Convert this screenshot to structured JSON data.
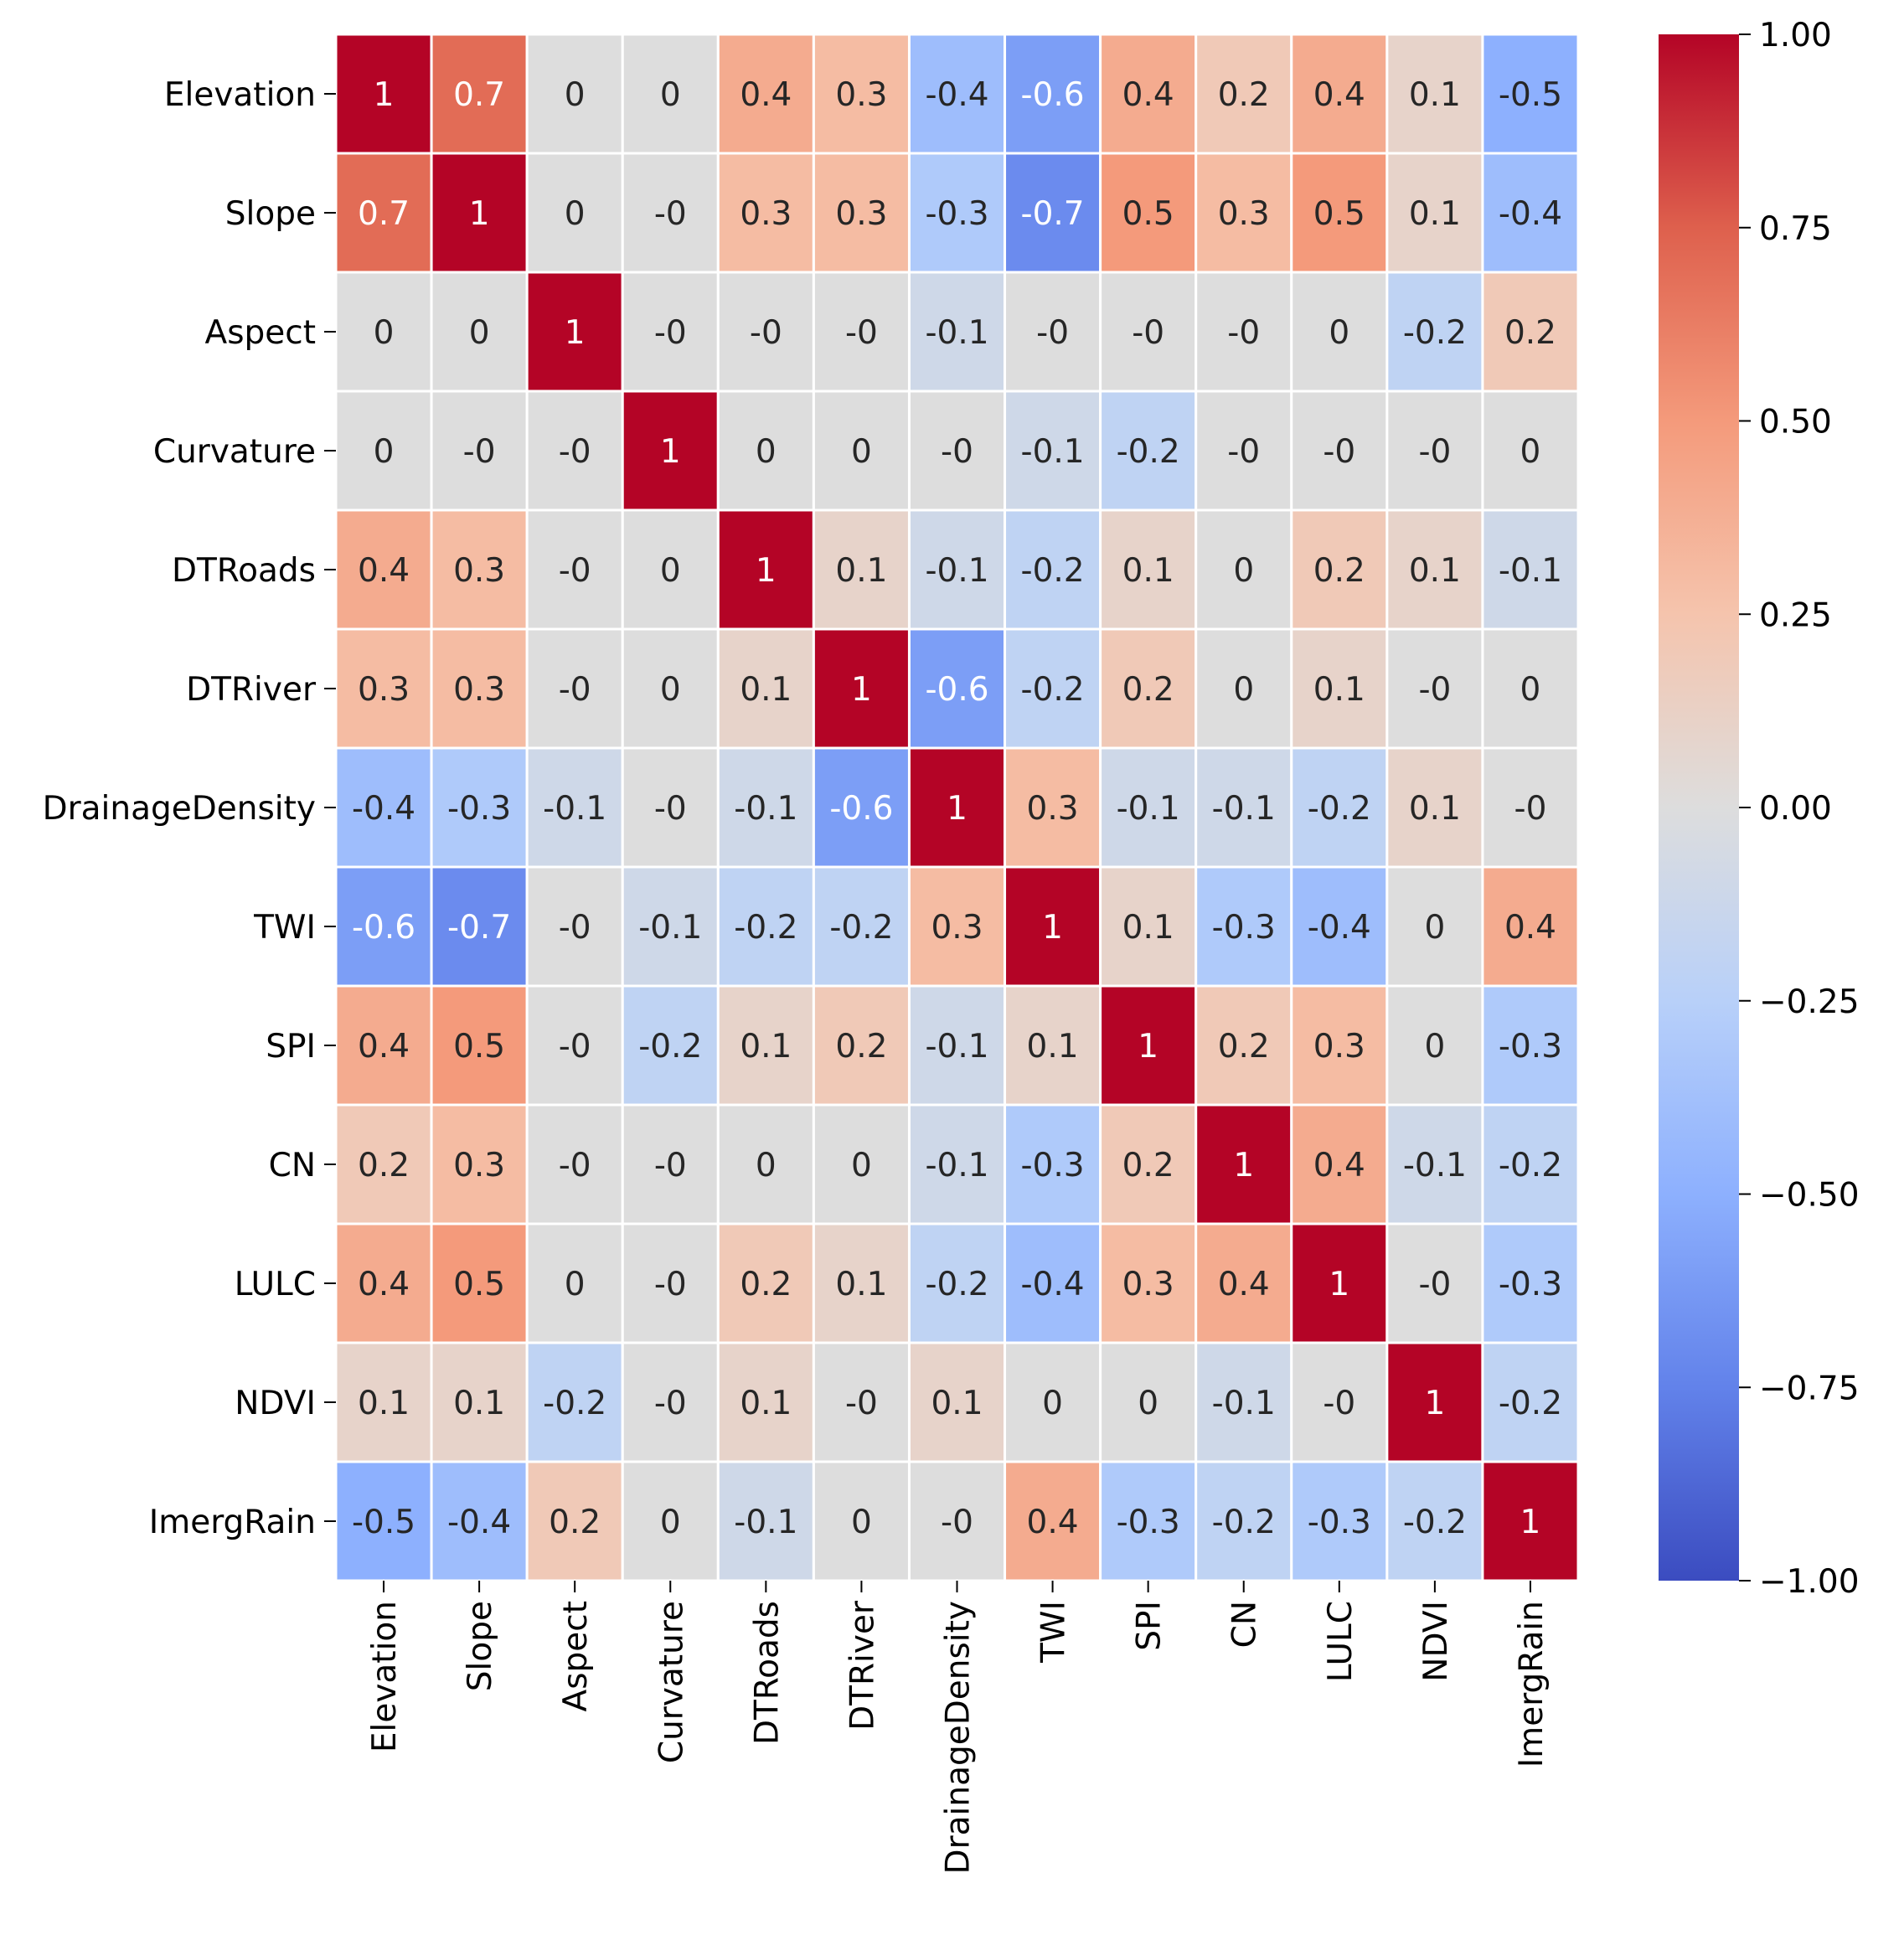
{
  "chart_data": {
    "type": "heatmap",
    "title": "",
    "colormap": "coolwarm",
    "vmin": -1,
    "vmax": 1,
    "labels": [
      "Elevation",
      "Slope",
      "Aspect",
      "Curvature",
      "DTRoads",
      "DTRiver",
      "DrainageDensity",
      "TWI",
      "SPI",
      "CN",
      "LULC",
      "NDVI",
      "ImergRain"
    ],
    "matrix": [
      [
        "1",
        "0.7",
        "0",
        "0",
        "0.4",
        "0.3",
        "-0.4",
        "-0.6",
        "0.4",
        "0.2",
        "0.4",
        "0.1",
        "-0.5"
      ],
      [
        "0.7",
        "1",
        "0",
        "-0",
        "0.3",
        "0.3",
        "-0.3",
        "-0.7",
        "0.5",
        "0.3",
        "0.5",
        "0.1",
        "-0.4"
      ],
      [
        "0",
        "0",
        "1",
        "-0",
        "-0",
        "-0",
        "-0.1",
        "-0",
        "-0",
        "-0",
        "0",
        "-0.2",
        "0.2"
      ],
      [
        "0",
        "-0",
        "-0",
        "1",
        "0",
        "0",
        "-0",
        "-0.1",
        "-0.2",
        "-0",
        "-0",
        "-0",
        "0"
      ],
      [
        "0.4",
        "0.3",
        "-0",
        "0",
        "1",
        "0.1",
        "-0.1",
        "-0.2",
        "0.1",
        "0",
        "0.2",
        "0.1",
        "-0.1"
      ],
      [
        "0.3",
        "0.3",
        "-0",
        "0",
        "0.1",
        "1",
        "-0.6",
        "-0.2",
        "0.2",
        "0",
        "0.1",
        "-0",
        "0"
      ],
      [
        "-0.4",
        "-0.3",
        "-0.1",
        "-0",
        "-0.1",
        "-0.6",
        "1",
        "0.3",
        "-0.1",
        "-0.1",
        "-0.2",
        "0.1",
        "-0"
      ],
      [
        "-0.6",
        "-0.7",
        "-0",
        "-0.1",
        "-0.2",
        "-0.2",
        "0.3",
        "1",
        "0.1",
        "-0.3",
        "-0.4",
        "0",
        "0.4"
      ],
      [
        "0.4",
        "0.5",
        "-0",
        "-0.2",
        "0.1",
        "0.2",
        "-0.1",
        "0.1",
        "1",
        "0.2",
        "0.3",
        "0",
        "-0.3"
      ],
      [
        "0.2",
        "0.3",
        "-0",
        "-0",
        "0",
        "0",
        "-0.1",
        "-0.3",
        "0.2",
        "1",
        "0.4",
        "-0.1",
        "-0.2"
      ],
      [
        "0.4",
        "0.5",
        "0",
        "-0",
        "0.2",
        "0.1",
        "-0.2",
        "-0.4",
        "0.3",
        "0.4",
        "1",
        "-0",
        "-0.3"
      ],
      [
        "0.1",
        "0.1",
        "-0.2",
        "-0",
        "0.1",
        "-0",
        "0.1",
        "0",
        "0",
        "-0.1",
        "-0",
        "1",
        "-0.2"
      ],
      [
        "-0.5",
        "-0.4",
        "0.2",
        "0",
        "-0.1",
        "0",
        "-0",
        "0.4",
        "-0.3",
        "-0.2",
        "-0.3",
        "-0.2",
        "1"
      ]
    ],
    "colorbar": {
      "ticks": [
        1,
        0.75,
        0.5,
        0.25,
        0,
        -0.25,
        -0.5,
        -0.75,
        -1
      ],
      "tick_labels": [
        "1.00",
        "0.75",
        "0.50",
        "0.25",
        "0.00",
        "−0.25",
        "−0.50",
        "−0.75",
        "−1.00"
      ]
    },
    "grid": false,
    "legend": "right"
  }
}
